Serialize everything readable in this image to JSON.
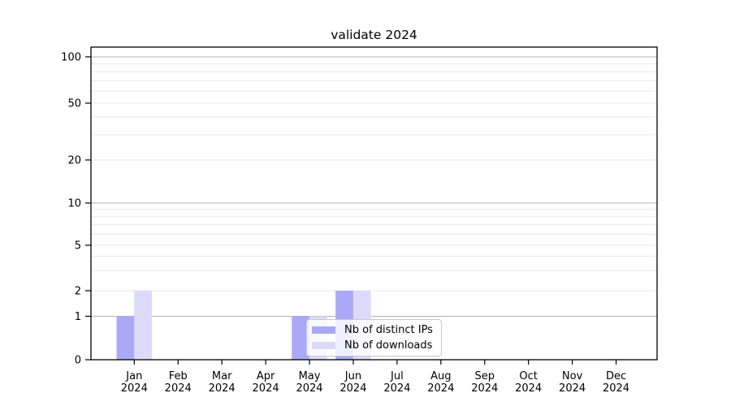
{
  "chart_data": {
    "type": "bar",
    "title": "validate 2024",
    "categories": [
      "Jan",
      "Feb",
      "Mar",
      "Apr",
      "May",
      "Jun",
      "Jul",
      "Aug",
      "Sep",
      "Oct",
      "Nov",
      "Dec"
    ],
    "category_year": "2024",
    "series": [
      {
        "name": "Nb of distinct IPs",
        "color": "#a9a9f7",
        "values": [
          1,
          0,
          0,
          0,
          1,
          2,
          0,
          0,
          0,
          0,
          0,
          0
        ]
      },
      {
        "name": "Nb of downloads",
        "color": "#dbdbf9",
        "values": [
          2,
          0,
          0,
          0,
          1,
          2,
          0,
          0,
          0,
          0,
          0,
          0
        ]
      }
    ],
    "yscale": "symlog",
    "ylim": [
      0,
      100
    ],
    "yticks": [
      0,
      1,
      2,
      5,
      10,
      20,
      50,
      100
    ],
    "minor_yticks": [
      3,
      4,
      6,
      7,
      8,
      9,
      30,
      40,
      60,
      70,
      80,
      90
    ],
    "grid": {
      "on": true,
      "decade_ticks": [
        1,
        10,
        100
      ],
      "decade_color": "#b0b0b0",
      "minor_color": "#e8e8e8"
    },
    "axis_color": "#000000",
    "text_color": "#000000",
    "legend_position": "lower center-right inside plot"
  }
}
